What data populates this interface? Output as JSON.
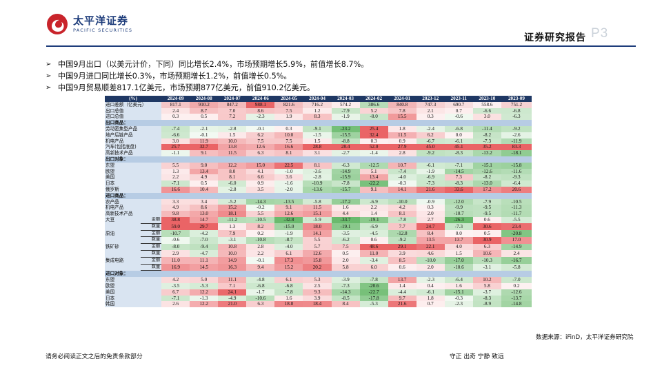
{
  "header": {
    "logo_cn": "太平洋证券",
    "logo_en": "PACIFIC SECURITIES",
    "report_label": "证券研究报告",
    "page_label": "P3"
  },
  "bullets": [
    "中国9月出口（以美元计价，下同）同比增长2.4%，市场预期增长5.9%，前值增长8.7%。",
    "中国9月进口同比增长0.3%，市场预期增长1.2%，前值增长0.5%。",
    "中国9月贸易顺差817.1亿美元，市场预期877亿美元，前值910.2亿美元。"
  ],
  "table": {
    "columns": [
      "(%)",
      "2024-09",
      "2024-08",
      "2024-07",
      "2024-06",
      "2024-05",
      "2024-04",
      "2024-03",
      "2024-02",
      "2024-01",
      "2023-12",
      "2023-11",
      "2023-10",
      "2023-09"
    ],
    "rows": [
      {
        "label": "进口差额（亿美元）",
        "values": [
          "817.1",
          "910.2",
          "847.2",
          "988.1",
          "821.6",
          "716.2",
          "574.2",
          "386.6",
          "840.8",
          "747.3",
          "690.7",
          "558.6",
          "751.2"
        ],
        "colors": [
          "#f4c6c7",
          "#f0aaab",
          "#f3bbbc",
          "#e96567",
          "#f3bfc0",
          "#f7d8d9",
          "#fceced",
          "#b7dcb8",
          "#f2b6b7",
          "#f6d1d2",
          "#f8dfe0",
          "#fdf1f2",
          "#f6d2d3"
        ]
      },
      {
        "label": "出口总值",
        "values": [
          "2.4",
          "8.7",
          "7.0",
          "8.6",
          "7.5",
          "1.2",
          "-7.9",
          "5.2",
          "7.8",
          "2.1",
          "0.7",
          "-6.6",
          "-6.8"
        ]
      },
      {
        "label": "进口总值",
        "values": [
          "0.3",
          "0.5",
          "7.2",
          "-2.3",
          "1.9",
          "8.3",
          "-1.9",
          "-8.0",
          "15.5",
          "0.3",
          "-0.6",
          "3.0",
          "-6.3"
        ]
      },
      {
        "section": "出口商品："
      },
      {
        "label": "劳动密集型产品",
        "values": [
          "-7.4",
          "-2.1",
          "-2.8",
          "-0.1",
          "0.3",
          "-9.1",
          "-23.2",
          "25.4",
          "1.8",
          "-2.4",
          "-6.8",
          "-11.4",
          "-9.2"
        ]
      },
      {
        "label": "地产后链产品",
        "values": [
          "-6.6",
          "-0.1",
          "1.5",
          "6.2",
          "10.0",
          "-1.5",
          "-15.5",
          "32.4",
          "11.5",
          "6.2",
          "0.0",
          "-8.2",
          "-2.6"
        ]
      },
      {
        "label": "机电产品",
        "values": [
          "3.0",
          "11.9",
          "10.0",
          "7.5",
          "7.5",
          "1.5",
          "-8.8",
          "0.3",
          "0.9",
          "-6.7",
          "-6.1",
          "-7.3",
          "-11.9"
        ]
      },
      {
        "label": "汽车(包括底盘)",
        "values": [
          "25.7",
          "32.7",
          "13.8",
          "12.6",
          "16.6",
          "28.8",
          "28.4",
          "52.0",
          "27.9",
          "45.0",
          "45.1",
          "35.2",
          "83.3"
        ]
      },
      {
        "label": "高新技术产品",
        "values": [
          "-1.1",
          "9.1",
          "11.5",
          "6.3",
          "8.1",
          "3.1",
          "-2.7",
          "-1.4",
          "2.8",
          "-9.2",
          "-8.3",
          "-13.2",
          "-18.1"
        ]
      },
      {
        "section": "出口对象："
      },
      {
        "label": "东盟",
        "values": [
          "5.5",
          "9.0",
          "12.2",
          "15.0",
          "22.5",
          "8.1",
          "-6.3",
          "-12.5",
          "10.7",
          "-6.1",
          "-7.1",
          "-15.1",
          "-15.8"
        ]
      },
      {
        "label": "欧盟",
        "values": [
          "1.3",
          "13.4",
          "8.0",
          "4.1",
          "-1.0",
          "-3.6",
          "-14.9",
          "5.1",
          "-7.4",
          "-1.9",
          "-14.5",
          "-12.6",
          "-11.6"
        ]
      },
      {
        "label": "美国",
        "values": [
          "2.2",
          "4.9",
          "8.1",
          "6.6",
          "3.6",
          "-2.8",
          "-15.9",
          "13.4",
          "-4.0",
          "-6.9",
          "7.3",
          "-8.2",
          "-9.3"
        ]
      },
      {
        "label": "日本",
        "values": [
          "-7.1",
          "0.5",
          "-6.0",
          "0.9",
          "-1.6",
          "-10.9",
          "-7.8",
          "-22.2",
          "-0.3",
          "-7.3",
          "-8.3",
          "-13.0",
          "-6.4"
        ]
      },
      {
        "label": "俄罗斯",
        "values": [
          "16.6",
          "10.4",
          "-2.8",
          "3.5",
          "-2.0",
          "-13.6",
          "-15.7",
          "9.1",
          "14.1",
          "21.6",
          "33.6",
          "17.2",
          "20.6"
        ]
      },
      {
        "section": "进口商品："
      },
      {
        "label": "农产品",
        "values": [
          "3.3",
          "3.4",
          "-5.2",
          "-14.3",
          "-13.5",
          "-5.8",
          "-17.2",
          "-6.9",
          "-10.0",
          "-0.9",
          "-12.0",
          "-7.9",
          "-10.5"
        ]
      },
      {
        "label": "机电产品",
        "values": [
          "4.9",
          "8.6",
          "15.2",
          "-0.2",
          "9.1",
          "11.5",
          "1.6",
          "2.2",
          "4.2",
          "0.3",
          "-9.9",
          "-9.5",
          "-11.3"
        ]
      },
      {
        "label": "高新技术产品",
        "values": [
          "9.8",
          "13.0",
          "18.1",
          "5.5",
          "12.6",
          "15.1",
          "4.4",
          "1.4",
          "8.1",
          "2.0",
          "-10.7",
          "-9.5",
          "-11.7"
        ]
      },
      {
        "label": "大豆",
        "sub": "金额",
        "values": [
          "38.8",
          "14.7",
          "-11.2",
          "-10.5",
          "-32.8",
          "-5.9",
          "-33.7",
          "-19.1",
          "-7.8",
          "2.7",
          "-26.3",
          "0.6",
          "-5.5"
        ]
      },
      {
        "label": "",
        "sub": "数量",
        "values": [
          "59.0",
          "29.7",
          "1.3",
          "8.2",
          "-15.0",
          "18.0",
          "-19.1",
          "-6.9",
          "7.7",
          "24.7",
          "-7.3",
          "30.6",
          "23.4"
        ]
      },
      {
        "label": "原油",
        "sub": "金额",
        "values": [
          "-10.7",
          "-4.2",
          "7.9",
          "0.2",
          "-1.9",
          "14.1",
          "-3.5",
          "-4.5",
          "-12.8",
          "8.4",
          "0.0",
          "0.5",
          "-20.8"
        ]
      },
      {
        "label": "",
        "sub": "数量",
        "values": [
          "-0.6",
          "-7.0",
          "-3.1",
          "-10.8",
          "-8.7",
          "5.5",
          "-6.2",
          "0.6",
          "-9.2",
          "13.5",
          "13.7",
          "30.9",
          "17.0"
        ]
      },
      {
        "label": "铁矿砂",
        "sub": "金额",
        "values": [
          "-8.0",
          "-9.4",
          "10.8",
          "2.8",
          "-4.0",
          "5.7",
          "7.5",
          "48.6",
          "29.1",
          "22.1",
          "4.0",
          "6.3",
          "-14.9"
        ]
      },
      {
        "label": "",
        "sub": "数量",
        "values": [
          "2.9",
          "-4.7",
          "10.0",
          "2.2",
          "6.1",
          "12.6",
          "0.5",
          "11.0",
          "3.9",
          "4.6",
          "1.5",
          "10.6",
          "2.4"
        ]
      },
      {
        "label": "集成电路",
        "sub": "金额",
        "values": [
          "11.0",
          "11.1",
          "14.9",
          "-0.1",
          "17.3",
          "15.8",
          "2.0",
          "-3.4",
          "8.5",
          "-10.0",
          "-17.0",
          "-10.3",
          "-16.7"
        ]
      },
      {
        "label": "",
        "sub": "数量",
        "values": [
          "16.9",
          "14.5",
          "16.3",
          "9.4",
          "15.2",
          "20.2",
          "5.8",
          "6.0",
          "0.6",
          "2.0",
          "-10.6",
          "-3.1",
          "-5.8"
        ]
      },
      {
        "section": "进口对象："
      },
      {
        "label": "东盟",
        "values": [
          "4.2",
          "5.0",
          "11.1",
          "-4.8",
          "6.1",
          "5.3",
          "-3.9",
          "-7.8",
          "13.7",
          "-2.3",
          "-6.4",
          "10.2",
          "-7.0"
        ]
      },
      {
        "label": "欧盟",
        "values": [
          "-3.5",
          "-5.3",
          "7.1",
          "-6.8",
          "-6.8",
          "2.5",
          "-7.3",
          "-20.6",
          "1.4",
          "0.4",
          "1.6",
          "5.8",
          "0.2"
        ]
      },
      {
        "label": "美国",
        "values": [
          "6.7",
          "12.2",
          "24.1",
          "-1.7",
          "-7.8",
          "9.3",
          "-14.3",
          "-22.7",
          "-4.4",
          "-6.1",
          "-15.1",
          "-3.7",
          "-12.6"
        ]
      },
      {
        "label": "日本",
        "values": [
          "-7.1",
          "-1.3",
          "-4.9",
          "-10.6",
          "1.6",
          "3.9",
          "-8.5",
          "-17.8",
          "9.7",
          "1.8",
          "-0.3",
          "-8.3",
          "-13.7"
        ]
      },
      {
        "label": "韩国",
        "values": [
          "2.6",
          "12.2",
          "21.0",
          "6.3",
          "18.8",
          "18.4",
          "8.4",
          "-5.3",
          "21.6",
          "0.7",
          "-2.3",
          "-8.9",
          "-14.8"
        ]
      }
    ]
  },
  "source": "数据来源：iFinD，太平洋证券研究院",
  "footer": {
    "left": "请务必阅读正文之后的免责条款部分",
    "right": "守正 出奇 宁静 致远"
  },
  "colors": {
    "brand": "#1e3d7b",
    "header_bg": "#1f3864",
    "section_bg": "#b7cce4",
    "label_bg": "#d9e4f1",
    "positive": "#e8585b",
    "negative": "#5fb562"
  }
}
